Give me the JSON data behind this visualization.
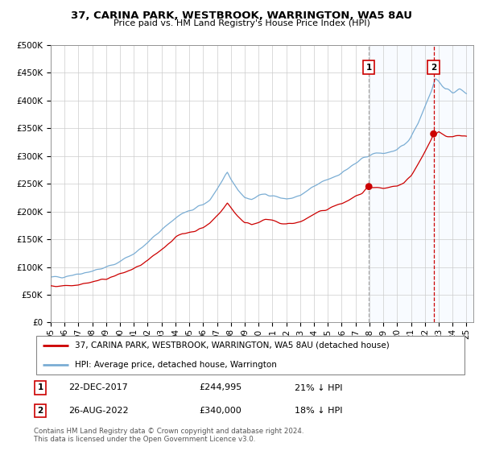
{
  "title": "37, CARINA PARK, WESTBROOK, WARRINGTON, WA5 8AU",
  "subtitle": "Price paid vs. HM Land Registry's House Price Index (HPI)",
  "legend_line1": "37, CARINA PARK, WESTBROOK, WARRINGTON, WA5 8AU (detached house)",
  "legend_line2": "HPI: Average price, detached house, Warrington",
  "annotation1_date": "22-DEC-2017",
  "annotation1_price_str": "£244,995",
  "annotation1_pct": "21% ↓ HPI",
  "annotation1_price": 244995,
  "annotation2_date": "26-AUG-2022",
  "annotation2_price_str": "£340,000",
  "annotation2_pct": "18% ↓ HPI",
  "annotation2_price": 340000,
  "footer": "Contains HM Land Registry data © Crown copyright and database right 2024.\nThis data is licensed under the Open Government Licence v3.0.",
  "hpi_color": "#7aadd4",
  "price_color": "#cc0000",
  "vline1_color": "#aaaaaa",
  "vline2_color": "#cc0000",
  "shade_color": "#ddeeff",
  "ylim": [
    0,
    500000
  ],
  "yticks": [
    0,
    50000,
    100000,
    150000,
    200000,
    250000,
    300000,
    350000,
    400000,
    450000,
    500000
  ],
  "background_color": "#ffffff",
  "grid_color": "#cccccc",
  "sale1_x": 2017.96,
  "sale2_x": 2022.63
}
